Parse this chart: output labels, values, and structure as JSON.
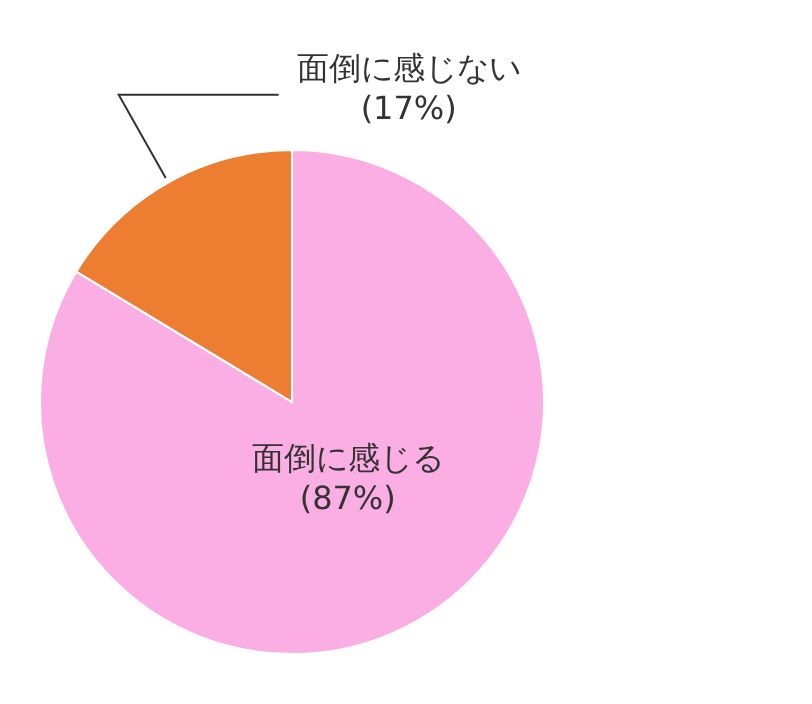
{
  "chart_data": {
    "type": "pie",
    "categories": [
      "面倒に感じる",
      "面倒に感じない"
    ],
    "values": [
      87,
      17
    ],
    "colors": [
      "#fbaee3",
      "#ed7d31"
    ],
    "value_labels": [
      "(87%)",
      "(17%)"
    ]
  }
}
